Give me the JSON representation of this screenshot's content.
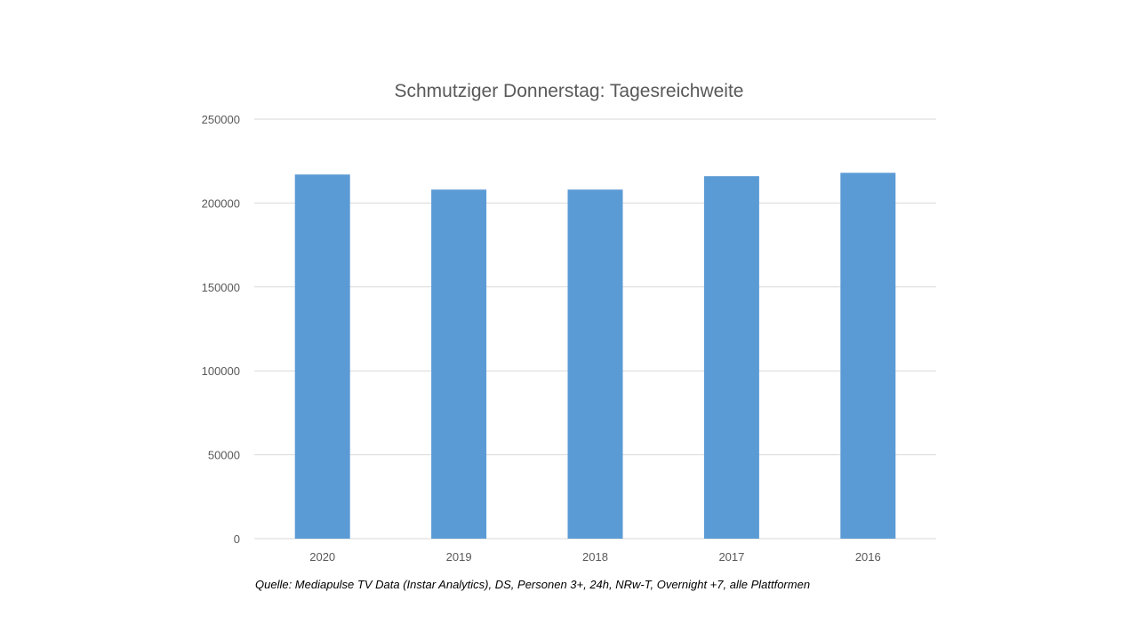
{
  "chart_data": {
    "type": "bar",
    "title": "Schmutziger Donnerstag: Tagesreichweite",
    "xlabel": "",
    "ylabel": "",
    "categories": [
      "2020",
      "2019",
      "2018",
      "2017",
      "2016"
    ],
    "values": [
      217000,
      208000,
      208000,
      216000,
      218000
    ],
    "ylim": [
      0,
      250000
    ],
    "yticks": [
      "0",
      "50000",
      "100000",
      "150000",
      "200000",
      "250000"
    ],
    "grid": true,
    "legend": "none",
    "bar_color": "#5b9bd5",
    "gridline_color": "#d9d9d9"
  },
  "footnote": "Quelle: Mediapulse TV Data (Instar Analytics), DS, Personen 3+, 24h, NRw-T, Overnight +7, alle Plattformen"
}
